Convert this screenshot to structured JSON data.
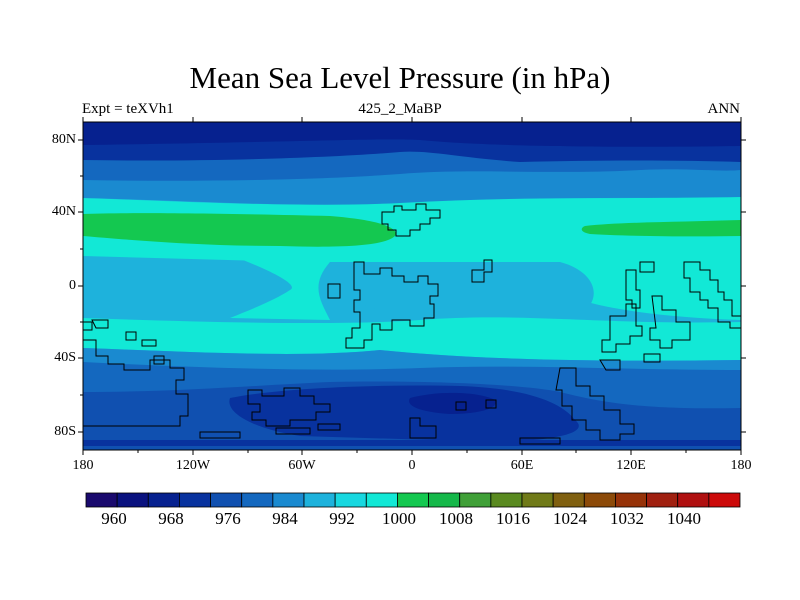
{
  "title": "Mean Sea Level Pressure (in hPa)",
  "subtitle_left": "Expt = teXVh1",
  "subtitle_center": "425_2_MaBP",
  "subtitle_right": "ANN",
  "lat_labels": [
    "80N",
    "40N",
    "0",
    "40S",
    "80S"
  ],
  "lon_labels": [
    "180",
    "120W",
    "60W",
    "0",
    "60E",
    "120E",
    "180"
  ],
  "colorbar": {
    "colors": [
      "#1a0a6e",
      "#0a127f",
      "#06218f",
      "#08329e",
      "#1050b0",
      "#1468bf",
      "#1a8ad0",
      "#1eb2dc",
      "#18d8e0",
      "#12e8d6",
      "#14c850",
      "#15b84a",
      "#40a038",
      "#5a8a20",
      "#707a18",
      "#806010",
      "#8c4a08",
      "#963208",
      "#a02010",
      "#b01010",
      "#cc0a0a"
    ],
    "labels": [
      "960",
      "968",
      "976",
      "984",
      "992",
      "1000",
      "1008",
      "1016",
      "1024",
      "1032",
      "1040"
    ]
  }
}
